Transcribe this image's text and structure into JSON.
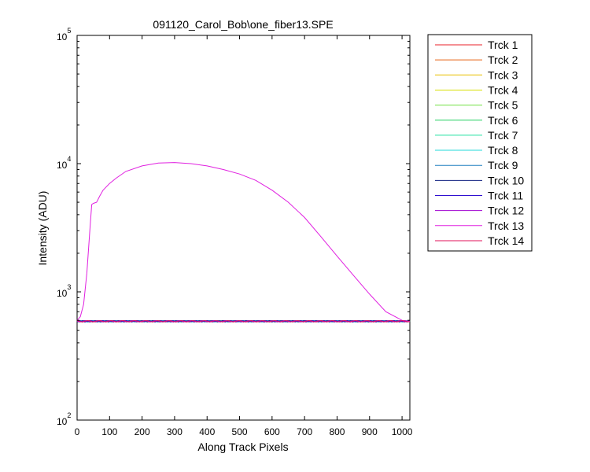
{
  "chart_data": {
    "type": "line",
    "title": "091120_Carol_Bob\\one_fiber13.SPE",
    "xlabel": "Along Track Pixels",
    "ylabel": "Intensity (ADU)",
    "xlim": [
      0,
      1024
    ],
    "ylim": [
      100,
      100000
    ],
    "yscale": "log",
    "grid": false,
    "legend_position": "outside-right",
    "x_ticks": [
      "0",
      "100",
      "200",
      "300",
      "400",
      "500",
      "600",
      "700",
      "800",
      "900",
      "1000"
    ],
    "y_ticks": [
      {
        "base": "10",
        "exp": "2",
        "value": 100
      },
      {
        "base": "10",
        "exp": "3",
        "value": 1000
      },
      {
        "base": "10",
        "exp": "4",
        "value": 10000
      },
      {
        "base": "10",
        "exp": "5",
        "value": 100000
      }
    ],
    "baseline_value": 590,
    "series": [
      {
        "name": "Trck 1",
        "color": "#e8202a"
      },
      {
        "name": "Trck 2",
        "color": "#e86010"
      },
      {
        "name": "Trck 3",
        "color": "#e8c000"
      },
      {
        "name": "Trck 4",
        "color": "#d8e000"
      },
      {
        "name": "Trck 5",
        "color": "#70e040"
      },
      {
        "name": "Trck 6",
        "color": "#20d060"
      },
      {
        "name": "Trck 7",
        "color": "#20e0a0"
      },
      {
        "name": "Trck 8",
        "color": "#20d8d8"
      },
      {
        "name": "Trck 9",
        "color": "#2080c0"
      },
      {
        "name": "Trck 10",
        "color": "#102080"
      },
      {
        "name": "Trck 11",
        "color": "#3010d0"
      },
      {
        "name": "Trck 12",
        "color": "#a000d0"
      },
      {
        "name": "Trck 13",
        "color": "#e020e0",
        "x": [
          0,
          10,
          20,
          30,
          40,
          45,
          50,
          60,
          70,
          80,
          100,
          120,
          150,
          200,
          250,
          300,
          350,
          400,
          450,
          500,
          550,
          600,
          650,
          700,
          750,
          800,
          850,
          900,
          950,
          1000,
          1024
        ],
        "values": [
          600,
          640,
          800,
          1400,
          3200,
          4800,
          4900,
          5000,
          5600,
          6200,
          7000,
          7700,
          8700,
          9600,
          10100,
          10200,
          10000,
          9600,
          9000,
          8300,
          7400,
          6200,
          5000,
          3800,
          2700,
          1900,
          1350,
          960,
          700,
          600,
          590
        ]
      },
      {
        "name": "Trck 14",
        "color": "#e0105a"
      }
    ]
  }
}
